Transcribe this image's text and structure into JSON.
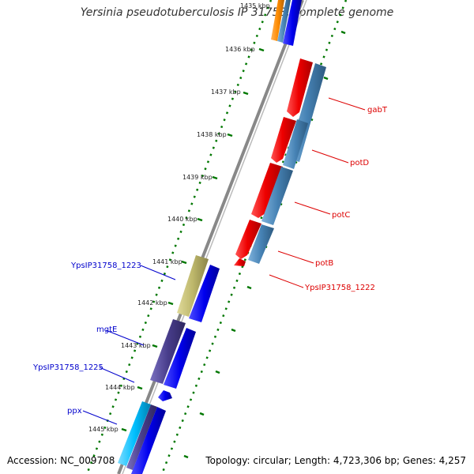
{
  "title": "Yersinia pseudotuberculosis IP 31758, complete genome",
  "footer": {
    "accession": "Accession: NC_009708",
    "info": "Topology: circular; Length: 4,723,306 bp; Genes: 4,257"
  },
  "kbp_labels": {
    "k1435": "1435 kbp",
    "k1436": "1436 kbp",
    "k1437": "1437 kbp",
    "k1438": "1438 kbp",
    "k1439": "1439 kbp",
    "k1440": "1440 kbp",
    "k1441": "1441 kbp",
    "k1442": "1442 kbp",
    "k1443": "1443 kbp",
    "k1444": "1444 kbp",
    "k1445": "1445 kbp"
  },
  "genes_right": {
    "gabT": "gabT",
    "potD": "potD",
    "potC": "potC",
    "potB": "potB",
    "ypsip_1222": "YpsIP31758_1222"
  },
  "genes_left": {
    "ypsip_1223": "YpsIP31758_1223",
    "mgtE": "mgtE",
    "ypsip_1225": "YpsIP31758_1225",
    "ppx": "ppx"
  },
  "colors": {
    "red_gene": "#ff0000",
    "blue_gene": "#0000ee",
    "steel_gene": "#4682b4",
    "khaki_gene": "#bdb76b",
    "slate_gene": "#483d8b",
    "cyan_gene": "#00bfff",
    "orange_gene": "#ff8c00",
    "axis_gray": "#888888",
    "tick_green": "#007700"
  }
}
